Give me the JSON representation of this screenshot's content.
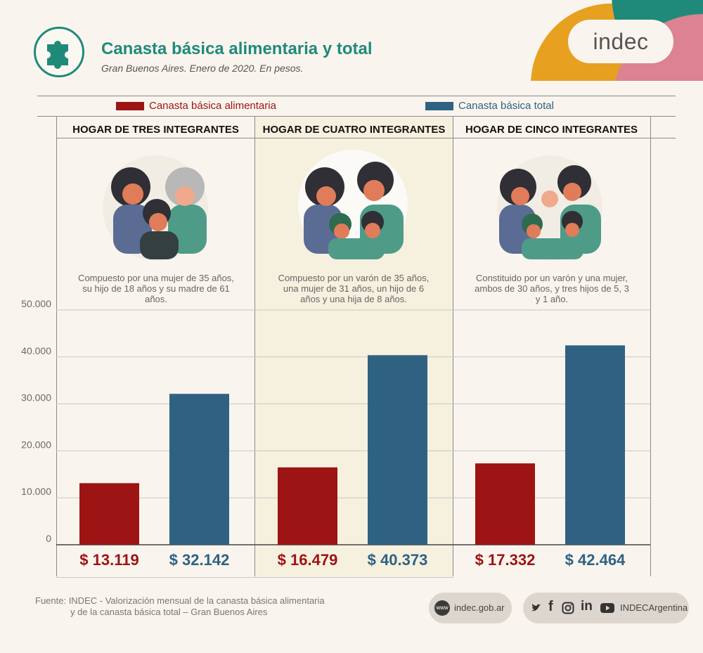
{
  "header": {
    "title": "Canasta básica alimentaria y total",
    "subtitle": "Gran Buenos Aires. Enero de 2020. En pesos.",
    "logo_text": "indec"
  },
  "colors": {
    "food": "#9c1413",
    "total": "#2f6282",
    "teal": "#1f8a7a",
    "orange": "#e7a020",
    "pink": "#dc8290"
  },
  "legend": [
    {
      "label": "Canasta básica alimentaria",
      "color": "#9c1413"
    },
    {
      "label": "Canasta básica total",
      "color": "#2f6282"
    }
  ],
  "households": [
    {
      "title": "HOGAR DE TRES INTEGRANTES",
      "description": "Compuesto por una mujer de 35 años, su hijo de 18 años y su madre de 61 años."
    },
    {
      "title": "HOGAR DE CUATRO INTEGRANTES",
      "description": "Compuesto por un varón de 35 años, una mujer de 31 años, un hijo de 6 años y una hija de 8 años."
    },
    {
      "title": "HOGAR DE CINCO INTEGRANTES",
      "description": "Constituido por un varón y una mujer, ambos de 30 años, y tres hijos de 5, 3 y 1 año."
    }
  ],
  "chart_data": {
    "type": "bar",
    "categories": [
      "HOGAR DE TRES INTEGRANTES",
      "HOGAR DE CUATRO INTEGRANTES",
      "HOGAR DE CINCO INTEGRANTES"
    ],
    "series": [
      {
        "name": "Canasta básica alimentaria",
        "values": [
          13119,
          16479,
          17332
        ]
      },
      {
        "name": "Canasta básica total",
        "values": [
          32142,
          40373,
          42464
        ]
      }
    ],
    "value_labels": [
      [
        "$ 13.119",
        "$ 32.142"
      ],
      [
        "$ 16.479",
        "$ 40.373"
      ],
      [
        "$ 17.332",
        "$ 42.464"
      ]
    ],
    "ylim": [
      0,
      50000
    ],
    "yticks": [
      0,
      10000,
      20000,
      30000,
      40000,
      50000
    ],
    "ytick_labels": [
      "0",
      "10.000",
      "20.000",
      "30.000",
      "40.000",
      "50.000"
    ],
    "grid": true,
    "legend_position": "top"
  },
  "footer": {
    "source_line1": "Fuente: INDEC - Valorización mensual de la canasta básica alimentaria",
    "source_line2": "y de la canasta básica total – Gran Buenos Aires",
    "web_label": "indec.gob.ar",
    "social_label": "INDECArgentina",
    "www_icon_text": "www",
    "social_icons": [
      "twitter-icon",
      "facebook-icon",
      "instagram-icon",
      "linkedin-icon",
      "youtube-icon"
    ]
  }
}
